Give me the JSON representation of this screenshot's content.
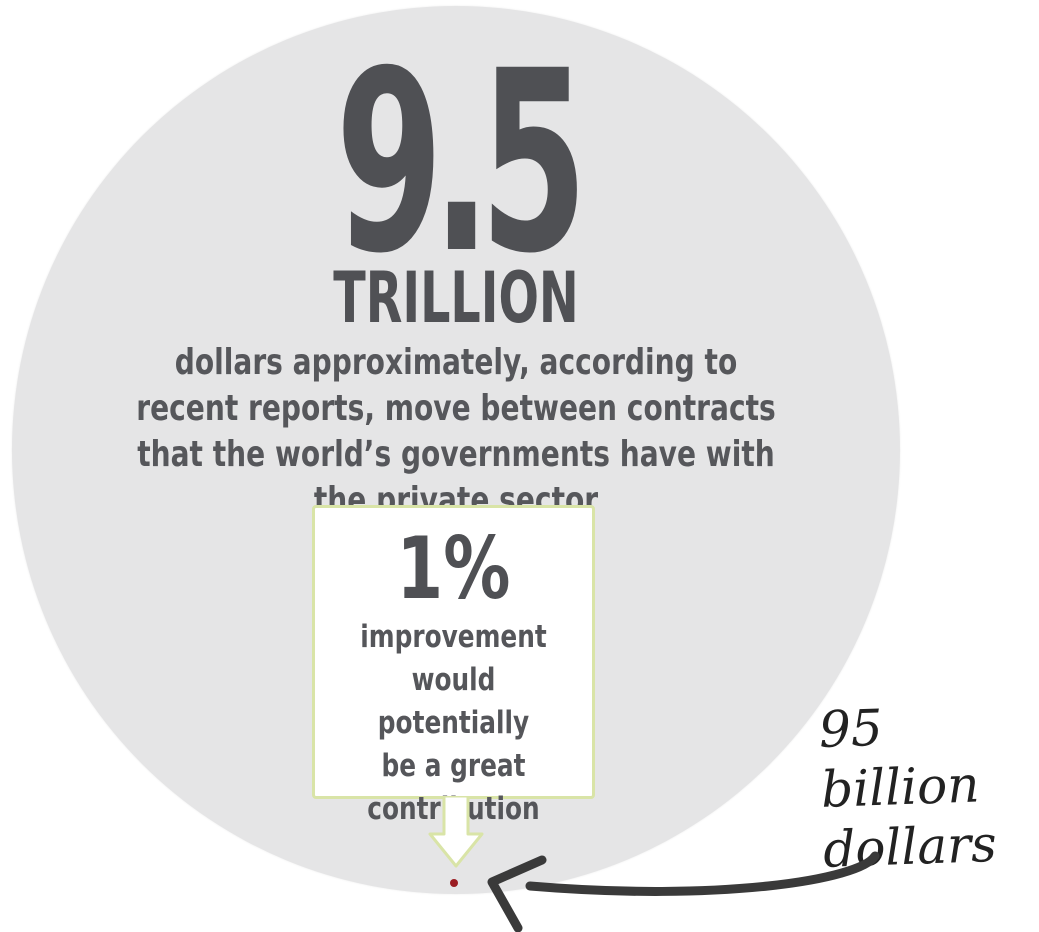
{
  "headline": {
    "number": "9.5",
    "unit": "TRILLION"
  },
  "description": "dollars approximately, according to recent reports, move between contracts that the world’s governments have with the private sector",
  "callout": {
    "percent": "1%",
    "text": "improvement\nwould potentially\nbe a great\ncontribution"
  },
  "annotation": {
    "text": "95 billion\ndollars"
  },
  "colors": {
    "circle": "#e5e5e6",
    "text_dark": "#4f5054",
    "callout_border": "#d9e4a7",
    "dot": "#9a1c22",
    "annotation_ink": "#222222"
  }
}
